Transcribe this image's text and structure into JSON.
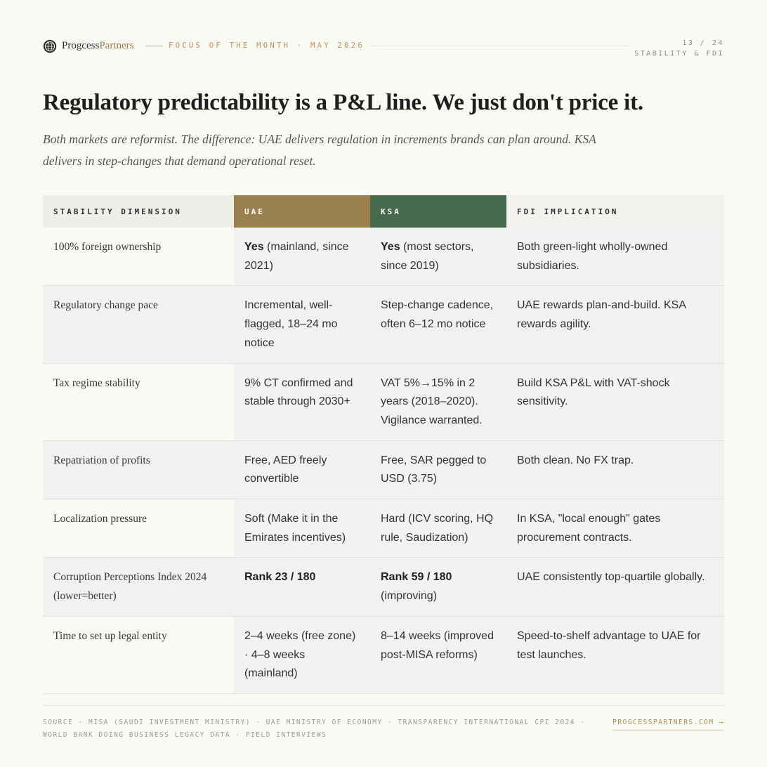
{
  "header": {
    "logo_icon": "compass-globe-icon",
    "brand_primary": "Progcess",
    "brand_accent": "Partners",
    "focus_label": "FOCUS OF THE MONTH · MAY 2026",
    "page_number": "13 / 24",
    "section_label": "STABILITY & FDI"
  },
  "title": "Regulatory predictability is a P&L line. We just don't price it.",
  "subtitle": "Both markets are reformist. The difference: UAE delivers regulation in increments brands can plan around. KSA delivers in step-changes that demand operational reset.",
  "table": {
    "headers": [
      "STABILITY DIMENSION",
      "UAE",
      "KSA",
      "FDI IMPLICATION"
    ],
    "rows": [
      {
        "dimension": "100% foreign ownership",
        "uae_bold": "Yes",
        "uae": " (mainland, since 2021)",
        "ksa_bold": "Yes",
        "ksa": " (most sectors, since 2019)",
        "implication": "Both green-light wholly-owned subsidiaries."
      },
      {
        "dimension": "Regulatory change pace",
        "uae_bold": "",
        "uae": "Incremental, well-flagged, 18–24 mo notice",
        "ksa_bold": "",
        "ksa": "Step-change cadence, often 6–12 mo notice",
        "implication": "UAE rewards plan-and-build. KSA rewards agility."
      },
      {
        "dimension": "Tax regime stability",
        "uae_bold": "",
        "uae": "9% CT confirmed and stable through 2030+",
        "ksa_bold": "",
        "ksa": "VAT 5%→15% in 2 years (2018–2020). Vigilance warranted.",
        "implication": "Build KSA P&L with VAT-shock sensitivity."
      },
      {
        "dimension": "Repatriation of profits",
        "uae_bold": "",
        "uae": "Free, AED freely convertible",
        "ksa_bold": "",
        "ksa": "Free, SAR pegged to USD (3.75)",
        "implication": "Both clean. No FX trap."
      },
      {
        "dimension": "Localization pressure",
        "uae_bold": "",
        "uae": "Soft (Make it in the Emirates incentives)",
        "ksa_bold": "",
        "ksa": "Hard (ICV scoring, HQ rule, Saudization)",
        "implication": "In KSA, \"local enough\" gates procurement contracts."
      },
      {
        "dimension": "Corruption Perceptions Index 2024 (lower=better)",
        "uae_bold": "Rank 23 / 180",
        "uae": "",
        "ksa_bold": "Rank 59 / 180",
        "ksa": " (improving)",
        "implication": "UAE consistently top-quartile globally."
      },
      {
        "dimension": "Time to set up legal entity",
        "uae_bold": "",
        "uae": "2–4 weeks (free zone) · 4–8 weeks (mainland)",
        "ksa_bold": "",
        "ksa": "8–14 weeks (improved post-MISA reforms)",
        "implication": "Speed-to-shelf advantage to UAE for test launches."
      }
    ]
  },
  "footer": {
    "source": "SOURCE · MISA (SAUDI INVESTMENT MINISTRY) · UAE MINISTRY OF ECONOMY · TRANSPARENCY INTERNATIONAL CPI 2024 · WORLD BANK DOING BUSINESS LEGACY DATA · FIELD INTERVIEWS",
    "site_link": "PROGCESSPARTNERS.COM →"
  }
}
